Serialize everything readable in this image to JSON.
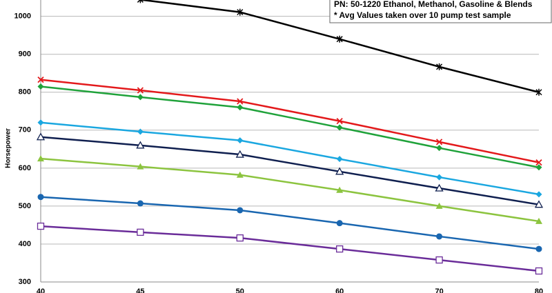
{
  "chart_data": {
    "type": "line",
    "y_label": "Horsepower",
    "annotations": [
      "PN: 50-1220 Ethanol, Methanol, Gasoline & Blends",
      "* Avg Values taken over 10 pump test sample"
    ],
    "categories": [
      "40",
      "45",
      "50",
      "60",
      "70",
      "80"
    ],
    "ylim": [
      300,
      1043
    ],
    "yticks": [
      300,
      400,
      500,
      600,
      700,
      800,
      900,
      1000
    ],
    "grid": true,
    "series": [
      {
        "color": "#000000",
        "marker": "asterisk",
        "values": [
          null,
          1044,
          1011,
          940,
          867,
          800
        ]
      },
      {
        "color": "#e3191b",
        "marker": "x",
        "values": [
          833,
          805,
          776,
          724,
          669,
          615
        ]
      },
      {
        "color": "#1fa23a",
        "marker": "diamond",
        "values": [
          815,
          787,
          760,
          707,
          653,
          602
        ]
      },
      {
        "color": "#1aa7e0",
        "marker": "diamond",
        "values": [
          720,
          696,
          673,
          624,
          576,
          531
        ]
      },
      {
        "color": "#0f1f4f",
        "marker": "triangle-open",
        "values": [
          682,
          660,
          636,
          591,
          547,
          504
        ]
      },
      {
        "color": "#8cc43f",
        "marker": "triangle",
        "values": [
          625,
          604,
          582,
          542,
          500,
          460
        ]
      },
      {
        "color": "#1966b0",
        "marker": "circle",
        "values": [
          524,
          507,
          489,
          455,
          420,
          387
        ]
      },
      {
        "color": "#6a2c99",
        "marker": "square-open",
        "values": [
          447,
          431,
          416,
          387,
          358,
          329
        ]
      }
    ]
  }
}
